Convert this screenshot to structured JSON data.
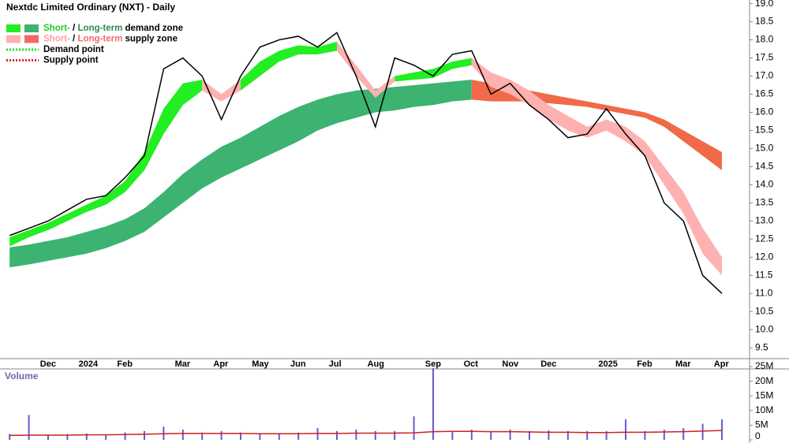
{
  "chart_data": [
    {
      "type": "line",
      "title": "Nextdc Limited Ordinary (NXT) - Daily",
      "categories": [
        null,
        null,
        "Dec",
        null,
        "2024",
        null,
        "Feb",
        null,
        null,
        "Mar",
        null,
        "Apr",
        null,
        "May",
        null,
        "Jun",
        null,
        "Jul",
        null,
        "Aug",
        null,
        null,
        "Sep",
        null,
        "Oct",
        null,
        "Nov",
        null,
        "Dec",
        null,
        null,
        "2025",
        null,
        "Feb",
        null,
        "Mar",
        null,
        "Apr"
      ],
      "ylim": [
        9.2,
        19.1
      ],
      "yticks": [
        9.5,
        {
          "value": 10,
          "label": "10.0"
        },
        10.5,
        {
          "value": 11,
          "label": "11.0"
        },
        11.5,
        {
          "value": 12,
          "label": "12.0"
        },
        12.5,
        {
          "value": 13,
          "label": "13.0"
        },
        13.5,
        {
          "value": 14,
          "label": "14.0"
        },
        14.5,
        {
          "value": 15,
          "label": "15.0"
        },
        15.5,
        {
          "value": 16,
          "label": "16.0"
        },
        16.5,
        {
          "value": 17,
          "label": "17.0"
        },
        17.5,
        {
          "value": 18,
          "label": "18.0"
        },
        18.5,
        {
          "value": 19,
          "label": "19.0"
        }
      ],
      "series": [
        {
          "color": "#000000",
          "values": [
            12.6,
            12.8,
            13.0,
            13.3,
            13.6,
            13.7,
            14.2,
            14.8,
            17.2,
            17.5,
            17.0,
            15.8,
            17.0,
            17.8,
            18.0,
            18.1,
            17.8,
            18.2,
            17.0,
            15.6,
            17.5,
            17.3,
            17.0,
            17.6,
            17.7,
            16.5,
            16.8,
            16.2,
            15.8,
            15.3,
            15.4,
            16.1,
            15.4,
            14.8,
            13.5,
            13.0,
            11.5,
            11.0
          ]
        }
      ],
      "zones": [
        {
          "color": "#3cb371",
          "upper": [
            12.27,
            12.35,
            12.45,
            12.55,
            12.7,
            12.85,
            13.05,
            13.35,
            13.8,
            14.3,
            14.7,
            15.05,
            15.3,
            15.6,
            15.9,
            16.15,
            16.35,
            16.5,
            16.6,
            16.65,
            16.7,
            16.75,
            16.8,
            16.85,
            16.9,
            null,
            null,
            null,
            null,
            null,
            null,
            null,
            null,
            null,
            null,
            null,
            null,
            null
          ],
          "lower": [
            11.72,
            11.8,
            11.9,
            12.0,
            12.1,
            12.25,
            12.45,
            12.7,
            13.1,
            13.5,
            13.9,
            14.2,
            14.45,
            14.7,
            14.95,
            15.2,
            15.5,
            15.7,
            15.85,
            16.0,
            16.05,
            16.15,
            16.2,
            16.3,
            16.35,
            null,
            null,
            null,
            null,
            null,
            null,
            null,
            null,
            null,
            null,
            null,
            null,
            null
          ]
        },
        {
          "color": "#f06a4a",
          "upper": [
            null,
            null,
            null,
            null,
            null,
            null,
            null,
            null,
            null,
            null,
            null,
            null,
            null,
            null,
            null,
            null,
            null,
            null,
            null,
            null,
            null,
            null,
            null,
            null,
            16.9,
            16.8,
            16.7,
            16.6,
            16.5,
            16.4,
            16.3,
            16.2,
            16.1,
            16.0,
            15.8,
            15.5,
            15.2,
            14.9
          ],
          "lower": [
            null,
            null,
            null,
            null,
            null,
            null,
            null,
            null,
            null,
            null,
            null,
            null,
            null,
            null,
            null,
            null,
            null,
            null,
            null,
            null,
            null,
            null,
            null,
            null,
            16.35,
            16.3,
            16.3,
            16.3,
            16.25,
            16.2,
            16.15,
            16.05,
            15.95,
            15.85,
            15.6,
            15.2,
            14.8,
            14.4
          ]
        },
        {
          "color": "#22ee22",
          "upper": [
            12.55,
            12.75,
            12.95,
            13.2,
            13.45,
            13.7,
            14.1,
            14.9,
            16.1,
            16.8,
            16.9,
            null,
            16.9,
            17.4,
            17.7,
            17.85,
            17.8,
            17.95,
            null,
            null,
            17.0,
            17.1,
            17.2,
            17.4,
            17.5,
            null,
            null,
            null,
            null,
            null,
            null,
            null,
            null,
            null,
            null,
            null,
            null,
            null
          ],
          "lower": [
            12.3,
            12.55,
            12.75,
            13.0,
            13.25,
            13.45,
            13.8,
            14.4,
            15.4,
            16.2,
            16.6,
            null,
            16.6,
            17.0,
            17.4,
            17.6,
            17.6,
            17.7,
            null,
            null,
            16.85,
            16.9,
            16.95,
            17.2,
            17.3,
            null,
            null,
            null,
            null,
            null,
            null,
            null,
            null,
            null,
            null,
            null,
            null,
            null
          ]
        },
        {
          "color": "#ffb0b0",
          "upper": [
            null,
            null,
            null,
            null,
            null,
            null,
            null,
            null,
            null,
            null,
            16.9,
            16.5,
            16.9,
            null,
            null,
            null,
            null,
            17.95,
            17.3,
            16.6,
            17.0,
            null,
            null,
            null,
            17.5,
            17.1,
            16.9,
            16.6,
            16.2,
            15.9,
            15.6,
            15.8,
            15.6,
            15.2,
            14.5,
            13.8,
            12.8,
            12.0
          ],
          "lower": [
            null,
            null,
            null,
            null,
            null,
            null,
            null,
            null,
            null,
            null,
            16.6,
            16.3,
            16.6,
            null,
            null,
            null,
            null,
            17.7,
            17.0,
            16.4,
            16.85,
            null,
            null,
            null,
            17.3,
            16.7,
            16.5,
            16.2,
            15.8,
            15.5,
            15.3,
            15.5,
            15.2,
            14.8,
            14.0,
            13.2,
            12.1,
            11.5
          ]
        }
      ],
      "legend": [
        {
          "swatches": [
            "#22ee22",
            "#3cb371"
          ],
          "parts": [
            "Short-",
            " / ",
            "Long-term",
            " demand zone"
          ],
          "colors": [
            "#22cc22",
            "#000000",
            "#2e8b57",
            "#000000"
          ]
        },
        {
          "swatches": [
            "#ffb0b0",
            "#f06a6a"
          ],
          "parts": [
            "Short-",
            " / ",
            "Long-term",
            " supply zone"
          ],
          "colors": [
            "#ffa0a0",
            "#000000",
            "#f06a6a",
            "#000000"
          ]
        },
        {
          "line": "#22dd22",
          "parts": [
            "Demand point"
          ],
          "colors": [
            "#000000"
          ]
        },
        {
          "line": "#dd2222",
          "parts": [
            "Supply point"
          ],
          "colors": [
            "#000000"
          ]
        }
      ]
    },
    {
      "type": "bar",
      "title": "Volume",
      "ylim": [
        0,
        25000000
      ],
      "yticks": [
        0,
        {
          "value": 5000000,
          "label": "5M"
        },
        {
          "value": 10000000,
          "label": "10M"
        },
        {
          "value": 15000000,
          "label": "15M"
        },
        {
          "value": 20000000,
          "label": "20M"
        },
        {
          "value": 25000000,
          "label": "25M"
        }
      ],
      "color": "#6a5acd",
      "values": [
        2000000,
        8500000,
        1800000,
        2000000,
        2200000,
        1500000,
        2500000,
        3000000,
        4500000,
        3500000,
        2500000,
        3000000,
        2500000,
        2000000,
        2200000,
        2500000,
        4000000,
        3000000,
        3500000,
        3000000,
        3000000,
        8000000,
        24500000,
        3000000,
        3500000,
        3000000,
        3500000,
        3000000,
        3200000,
        3000000,
        3000000,
        3000000,
        7000000,
        3000000,
        3500000,
        4000000,
        5500000,
        7000000
      ],
      "average": {
        "color": "#cc2222",
        "values": [
          1500000,
          1600000,
          1600000,
          1600000,
          1700000,
          1700000,
          1800000,
          1900000,
          2100000,
          2200000,
          2200000,
          2200000,
          2200000,
          2100000,
          2100000,
          2100000,
          2200000,
          2200000,
          2300000,
          2300000,
          2300000,
          2400000,
          2800000,
          2900000,
          2900000,
          2800000,
          2800000,
          2700000,
          2600000,
          2600000,
          2500000,
          2500000,
          2600000,
          2600000,
          2700000,
          2800000,
          3000000,
          3200000
        ]
      }
    }
  ]
}
